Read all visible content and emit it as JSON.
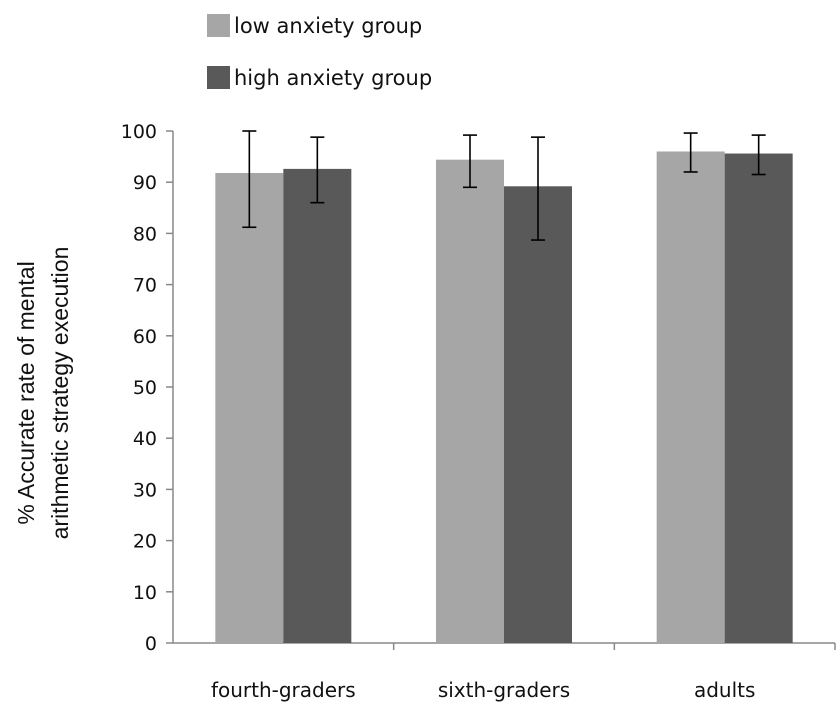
{
  "chart_data": {
    "type": "bar",
    "categories": [
      "fourth-graders",
      "sixth-graders",
      "adults"
    ],
    "series": [
      {
        "name": "low anxiety group",
        "color": "#a6a6a6",
        "values": [
          91.8,
          94.4,
          96.0
        ],
        "error_low": [
          81.2,
          89.0,
          92.0
        ],
        "error_high": [
          100.0,
          99.2,
          99.6
        ]
      },
      {
        "name": "high anxiety group",
        "color": "#595959",
        "values": [
          92.6,
          89.2,
          95.6
        ],
        "error_low": [
          86.0,
          78.7,
          91.5
        ],
        "error_high": [
          98.8,
          98.8,
          99.2
        ]
      }
    ],
    "ylabel_lines": [
      "% Accurate rate of mental",
      "arithmetic strategy execution"
    ],
    "ylim": [
      0,
      100
    ],
    "yticks": [
      0,
      10,
      20,
      30,
      40,
      50,
      60,
      70,
      80,
      90,
      100
    ],
    "grid": false,
    "legend_position": "top-left"
  }
}
